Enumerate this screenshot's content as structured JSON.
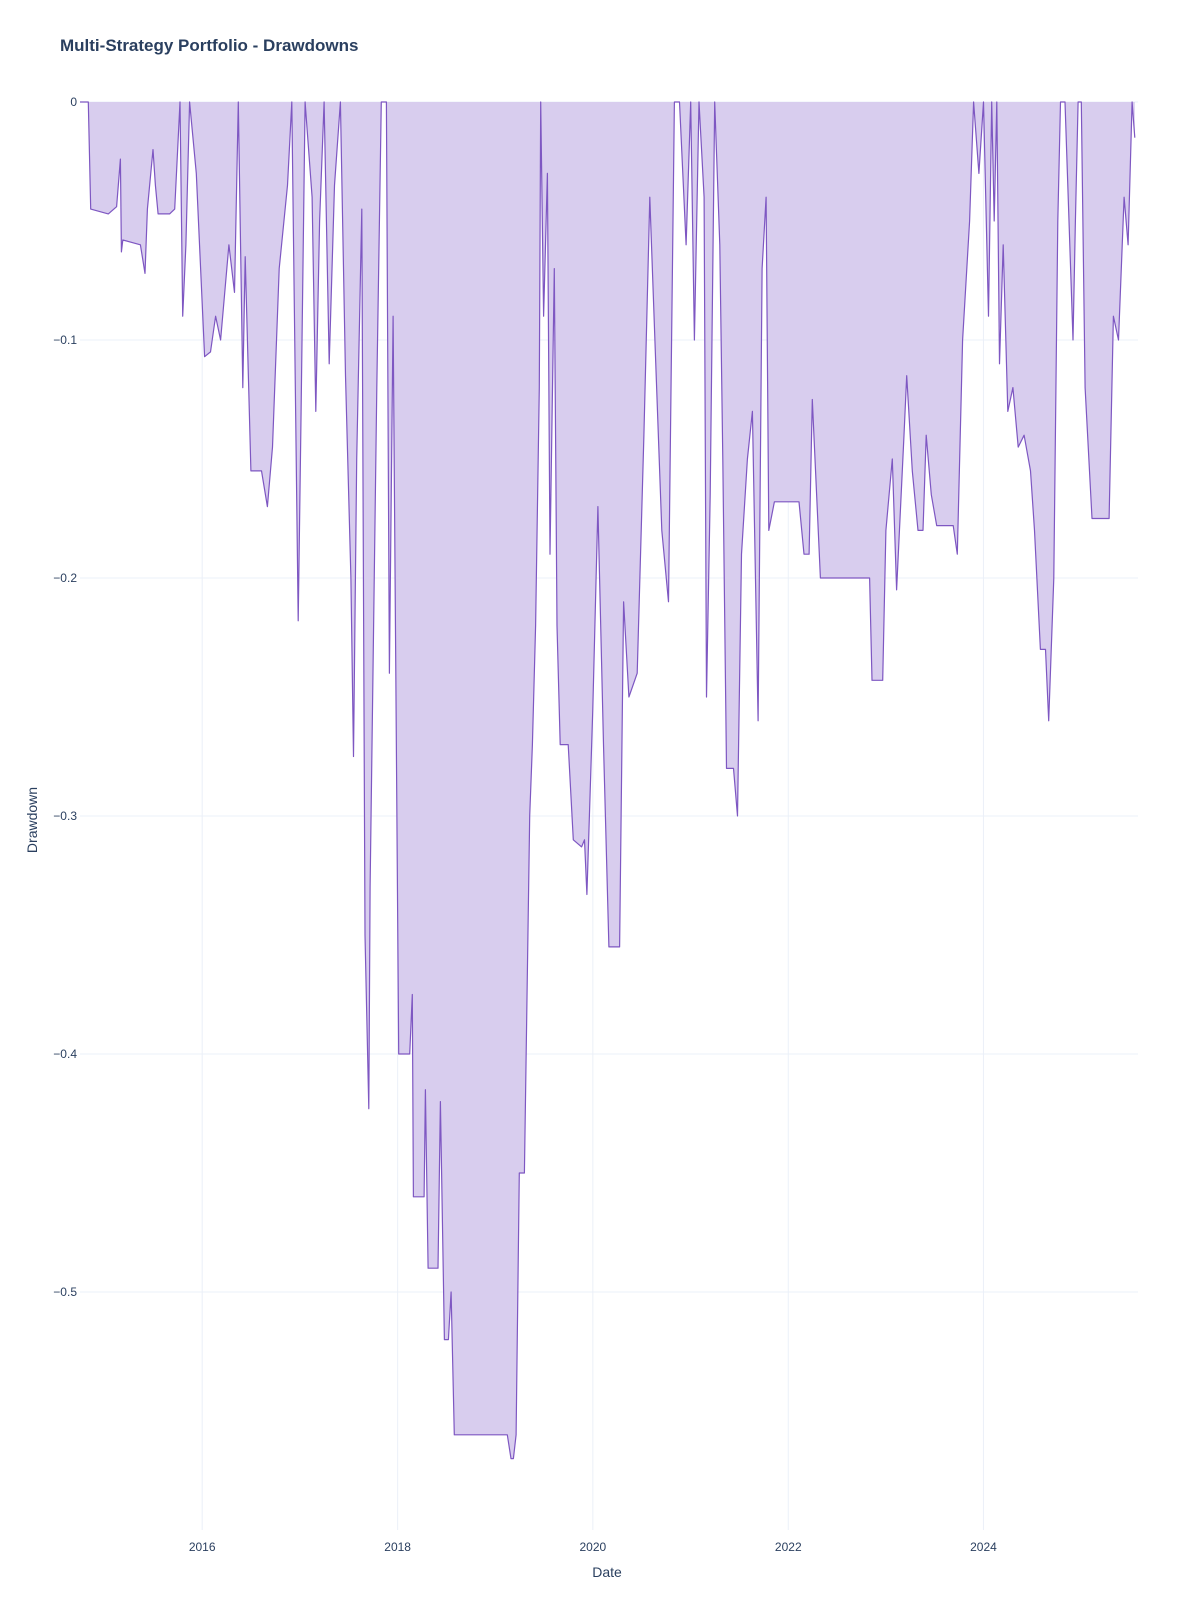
{
  "chart_data": {
    "type": "area",
    "title": "Multi-Strategy Portfolio - Drawdowns",
    "xlabel": "Date",
    "ylabel": "Drawdown",
    "xlim": [
      "2014-10-01",
      "2025-08-01"
    ],
    "ylim": [
      -0.6,
      0
    ],
    "grid": true,
    "colors": {
      "line": "#7e57c2",
      "fill": "#d8cdee",
      "text": "#2a3f5f",
      "grid": "#ebf0f8"
    },
    "x_ticks": [
      {
        "date": "2016-01-01",
        "label": "2016"
      },
      {
        "date": "2018-01-01",
        "label": "2018"
      },
      {
        "date": "2020-01-01",
        "label": "2020"
      },
      {
        "date": "2022-01-01",
        "label": "2022"
      },
      {
        "date": "2024-01-01",
        "label": "2024"
      }
    ],
    "y_ticks": [
      {
        "value": 0,
        "label": "0"
      },
      {
        "value": -0.1,
        "label": "−0.1"
      },
      {
        "value": -0.2,
        "label": "−0.2"
      },
      {
        "value": -0.3,
        "label": "−0.3"
      },
      {
        "value": -0.4,
        "label": "−0.4"
      },
      {
        "value": -0.5,
        "label": "−0.5"
      }
    ],
    "points": [
      [
        "2014-10-01",
        0
      ],
      [
        "2014-11-01",
        0
      ],
      [
        "2014-11-10",
        -0.045
      ],
      [
        "2015-01-15",
        -0.047
      ],
      [
        "2015-02-15",
        -0.044
      ],
      [
        "2015-03-01",
        -0.024
      ],
      [
        "2015-03-05",
        -0.063
      ],
      [
        "2015-03-10",
        -0.058
      ],
      [
        "2015-05-15",
        -0.06
      ],
      [
        "2015-06-01",
        -0.072
      ],
      [
        "2015-06-10",
        -0.045
      ],
      [
        "2015-07-01",
        -0.02
      ],
      [
        "2015-07-10",
        -0.035
      ],
      [
        "2015-07-20",
        -0.047
      ],
      [
        "2015-09-01",
        -0.047
      ],
      [
        "2015-09-20",
        -0.045
      ],
      [
        "2015-10-10",
        0
      ],
      [
        "2015-10-20",
        -0.09
      ],
      [
        "2015-11-01",
        -0.06
      ],
      [
        "2015-11-15",
        0
      ],
      [
        "2015-12-10",
        -0.03
      ],
      [
        "2016-01-10",
        -0.107
      ],
      [
        "2016-02-01",
        -0.105
      ],
      [
        "2016-02-20",
        -0.09
      ],
      [
        "2016-03-10",
        -0.1
      ],
      [
        "2016-04-10",
        -0.06
      ],
      [
        "2016-05-01",
        -0.08
      ],
      [
        "2016-05-15",
        0
      ],
      [
        "2016-06-01",
        -0.12
      ],
      [
        "2016-06-10",
        -0.065
      ],
      [
        "2016-07-01",
        -0.155
      ],
      [
        "2016-08-10",
        -0.155
      ],
      [
        "2016-09-01",
        -0.17
      ],
      [
        "2016-09-20",
        -0.145
      ],
      [
        "2016-10-15",
        -0.07
      ],
      [
        "2016-11-15",
        -0.035
      ],
      [
        "2016-12-01",
        0
      ],
      [
        "2016-12-20",
        -0.17
      ],
      [
        "2016-12-25",
        -0.218
      ],
      [
        "2017-01-05",
        -0.13
      ],
      [
        "2017-01-20",
        0
      ],
      [
        "2017-02-15",
        -0.04
      ],
      [
        "2017-03-01",
        -0.13
      ],
      [
        "2017-03-15",
        -0.05
      ],
      [
        "2017-04-01",
        0
      ],
      [
        "2017-04-20",
        -0.11
      ],
      [
        "2017-05-10",
        -0.035
      ],
      [
        "2017-06-01",
        0
      ],
      [
        "2017-06-20",
        -0.115
      ],
      [
        "2017-07-10",
        -0.2
      ],
      [
        "2017-07-20",
        -0.275
      ],
      [
        "2017-08-01",
        -0.15
      ],
      [
        "2017-08-20",
        -0.045
      ],
      [
        "2017-09-01",
        -0.35
      ],
      [
        "2017-09-15",
        -0.423
      ],
      [
        "2017-09-20",
        -0.33
      ],
      [
        "2017-10-15",
        -0.12
      ],
      [
        "2017-11-01",
        0
      ],
      [
        "2017-11-20",
        0
      ],
      [
        "2017-12-01",
        -0.24
      ],
      [
        "2017-12-15",
        -0.09
      ],
      [
        "2018-01-05",
        -0.4
      ],
      [
        "2018-02-15",
        -0.4
      ],
      [
        "2018-02-25",
        -0.375
      ],
      [
        "2018-03-01",
        -0.46
      ],
      [
        "2018-04-10",
        -0.46
      ],
      [
        "2018-04-15",
        -0.415
      ],
      [
        "2018-04-25",
        -0.49
      ],
      [
        "2018-06-01",
        -0.49
      ],
      [
        "2018-06-10",
        -0.42
      ],
      [
        "2018-06-25",
        -0.52
      ],
      [
        "2018-07-10",
        -0.52
      ],
      [
        "2018-07-20",
        -0.5
      ],
      [
        "2018-08-01",
        -0.56
      ],
      [
        "2019-02-15",
        -0.56
      ],
      [
        "2019-03-01",
        -0.57
      ],
      [
        "2019-03-10",
        -0.57
      ],
      [
        "2019-03-20",
        -0.56
      ],
      [
        "2019-04-01",
        -0.45
      ],
      [
        "2019-04-20",
        -0.45
      ],
      [
        "2019-05-10",
        -0.3
      ],
      [
        "2019-05-20",
        -0.27
      ],
      [
        "2019-06-01",
        -0.22
      ],
      [
        "2019-06-15",
        -0.12
      ],
      [
        "2019-06-20",
        0
      ],
      [
        "2019-07-01",
        -0.09
      ],
      [
        "2019-07-15",
        -0.03
      ],
      [
        "2019-07-25",
        -0.19
      ],
      [
        "2019-08-10",
        -0.07
      ],
      [
        "2019-08-20",
        -0.22
      ],
      [
        "2019-09-01",
        -0.27
      ],
      [
        "2019-10-01",
        -0.27
      ],
      [
        "2019-10-20",
        -0.31
      ],
      [
        "2019-11-20",
        -0.313
      ],
      [
        "2019-12-01",
        -0.31
      ],
      [
        "2019-12-10",
        -0.333
      ],
      [
        "2020-01-01",
        -0.255
      ],
      [
        "2020-01-20",
        -0.17
      ],
      [
        "2020-02-10",
        -0.27
      ],
      [
        "2020-03-01",
        -0.355
      ],
      [
        "2020-04-10",
        -0.355
      ],
      [
        "2020-04-25",
        -0.21
      ],
      [
        "2020-05-15",
        -0.25
      ],
      [
        "2020-06-15",
        -0.24
      ],
      [
        "2020-07-10",
        -0.14
      ],
      [
        "2020-08-01",
        -0.04
      ],
      [
        "2020-08-20",
        -0.1
      ],
      [
        "2020-09-15",
        -0.18
      ],
      [
        "2020-10-10",
        -0.21
      ],
      [
        "2020-11-01",
        0
      ],
      [
        "2020-11-20",
        0
      ],
      [
        "2020-12-15",
        -0.06
      ],
      [
        "2021-01-01",
        0
      ],
      [
        "2021-01-15",
        -0.1
      ],
      [
        "2021-02-01",
        0
      ],
      [
        "2021-02-20",
        -0.04
      ],
      [
        "2021-03-01",
        -0.25
      ],
      [
        "2021-03-15",
        -0.165
      ],
      [
        "2021-04-01",
        0
      ],
      [
        "2021-04-20",
        -0.06
      ],
      [
        "2021-05-01",
        -0.15
      ],
      [
        "2021-05-15",
        -0.28
      ],
      [
        "2021-06-10",
        -0.28
      ],
      [
        "2021-06-25",
        -0.3
      ],
      [
        "2021-07-10",
        -0.19
      ],
      [
        "2021-08-01",
        -0.15
      ],
      [
        "2021-08-20",
        -0.13
      ],
      [
        "2021-09-10",
        -0.26
      ],
      [
        "2021-09-25",
        -0.07
      ],
      [
        "2021-10-10",
        -0.04
      ],
      [
        "2021-10-20",
        -0.18
      ],
      [
        "2021-11-10",
        -0.168
      ],
      [
        "2022-02-10",
        -0.168
      ],
      [
        "2022-03-01",
        -0.19
      ],
      [
        "2022-03-20",
        -0.19
      ],
      [
        "2022-04-01",
        -0.125
      ],
      [
        "2022-05-01",
        -0.2
      ],
      [
        "2022-11-01",
        -0.2
      ],
      [
        "2022-11-10",
        -0.243
      ],
      [
        "2022-12-20",
        -0.243
      ],
      [
        "2023-01-01",
        -0.18
      ],
      [
        "2023-01-25",
        -0.15
      ],
      [
        "2023-02-10",
        -0.205
      ],
      [
        "2023-03-10",
        -0.14
      ],
      [
        "2023-03-20",
        -0.115
      ],
      [
        "2023-04-10",
        -0.155
      ],
      [
        "2023-05-01",
        -0.18
      ],
      [
        "2023-05-20",
        -0.18
      ],
      [
        "2023-06-01",
        -0.14
      ],
      [
        "2023-06-20",
        -0.165
      ],
      [
        "2023-07-10",
        -0.178
      ],
      [
        "2023-09-10",
        -0.178
      ],
      [
        "2023-09-25",
        -0.19
      ],
      [
        "2023-10-15",
        -0.1
      ],
      [
        "2023-11-10",
        -0.05
      ],
      [
        "2023-11-25",
        0
      ],
      [
        "2023-12-15",
        -0.03
      ],
      [
        "2024-01-01",
        0
      ],
      [
        "2024-01-20",
        -0.09
      ],
      [
        "2024-02-01",
        0
      ],
      [
        "2024-02-10",
        -0.05
      ],
      [
        "2024-02-20",
        0
      ],
      [
        "2024-03-01",
        -0.11
      ],
      [
        "2024-03-15",
        -0.06
      ],
      [
        "2024-04-01",
        -0.13
      ],
      [
        "2024-04-20",
        -0.12
      ],
      [
        "2024-05-10",
        -0.145
      ],
      [
        "2024-06-01",
        -0.14
      ],
      [
        "2024-06-25",
        -0.155
      ],
      [
        "2024-07-10",
        -0.18
      ],
      [
        "2024-08-01",
        -0.23
      ],
      [
        "2024-08-20",
        -0.23
      ],
      [
        "2024-09-01",
        -0.26
      ],
      [
        "2024-09-20",
        -0.2
      ],
      [
        "2024-10-05",
        -0.05
      ],
      [
        "2024-10-15",
        0
      ],
      [
        "2024-11-01",
        0
      ],
      [
        "2024-11-10",
        -0.03
      ],
      [
        "2024-12-01",
        -0.1
      ],
      [
        "2024-12-10",
        -0.05
      ],
      [
        "2024-12-20",
        0
      ],
      [
        "2025-01-01",
        0
      ],
      [
        "2025-01-15",
        -0.12
      ],
      [
        "2025-02-10",
        -0.175
      ],
      [
        "2025-04-15",
        -0.175
      ],
      [
        "2025-05-01",
        -0.09
      ],
      [
        "2025-05-20",
        -0.1
      ],
      [
        "2025-06-10",
        -0.04
      ],
      [
        "2025-06-25",
        -0.06
      ],
      [
        "2025-07-10",
        0
      ],
      [
        "2025-07-20",
        -0.015
      ]
    ]
  }
}
